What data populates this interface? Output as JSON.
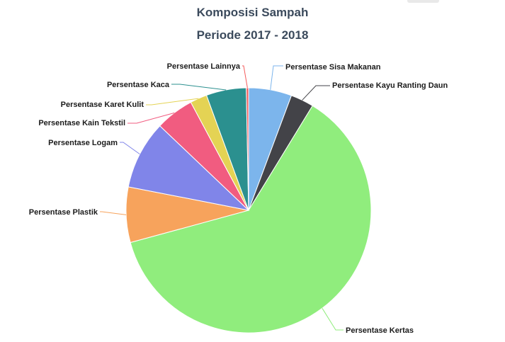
{
  "chart_data": {
    "type": "pie",
    "title": "Komposisi Sampah",
    "subtitle": "Periode 2017 - 2018",
    "slices": [
      {
        "name": "Persentase Sisa Makanan",
        "value": 5.6,
        "color": "#7cb5ec"
      },
      {
        "name": "Persentase Kayu Ranting Daun",
        "value": 3.0,
        "color": "#434348"
      },
      {
        "name": "Persentase Kertas",
        "value": 61.1,
        "color": "#90ed7d"
      },
      {
        "name": "Persentase Plastik",
        "value": 7.2,
        "color": "#f7a35c"
      },
      {
        "name": "Persentase Logam",
        "value": 8.9,
        "color": "#8085e9"
      },
      {
        "name": "Persentase Kain Tekstil",
        "value": 5.0,
        "color": "#f15c80"
      },
      {
        "name": "Persentase Karet Kulit",
        "value": 2.2,
        "color": "#e4d354"
      },
      {
        "name": "Persentase Kaca",
        "value": 5.2,
        "color": "#2b908f"
      },
      {
        "name": "Persentase Lainnya",
        "value": 0.3,
        "color": "#f45b5b"
      }
    ],
    "legend": "none",
    "data_labels": "outside-with-connectors"
  }
}
